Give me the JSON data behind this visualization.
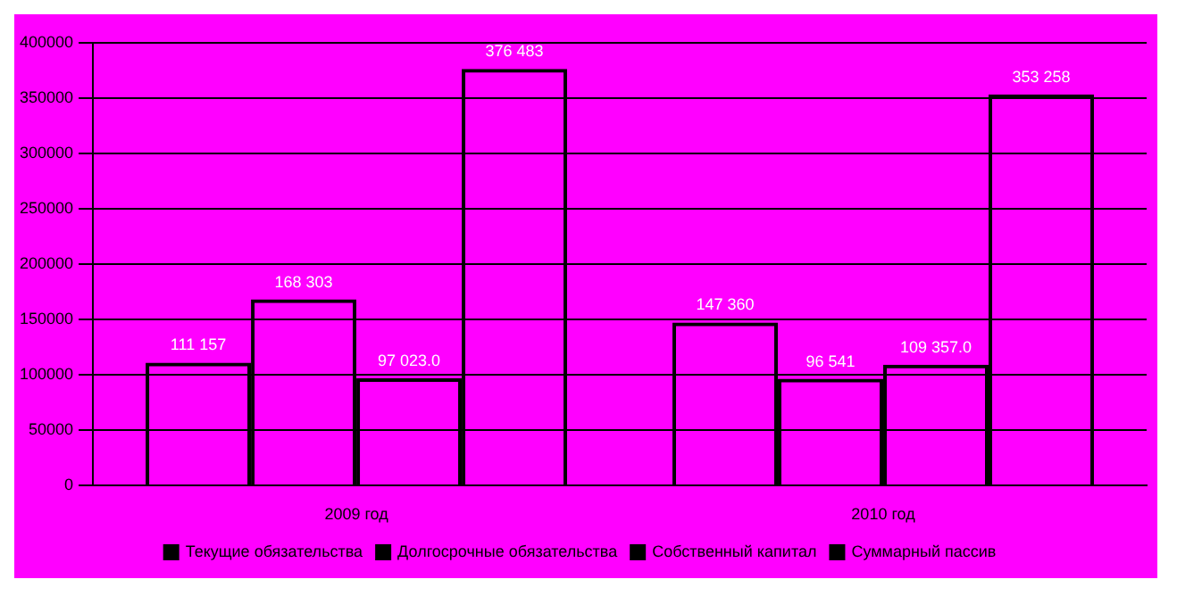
{
  "chart_data": {
    "type": "bar",
    "categories": [
      "2009 год",
      "2010 год"
    ],
    "series": [
      {
        "name": "Текущие обязательства",
        "color": "#000000",
        "values": [
          111157,
          147360
        ],
        "value_labels": [
          "111 157",
          "147 360"
        ]
      },
      {
        "name": "Долгосрочные обязательства",
        "color": "#000000",
        "values": [
          168303,
          96541
        ],
        "value_labels": [
          "168 303",
          "96 541"
        ]
      },
      {
        "name": "Собственный капитал",
        "color": "#000000",
        "values": [
          97023.0,
          109357.0
        ],
        "value_labels": [
          "97 023.0",
          "109 357.0"
        ]
      },
      {
        "name": "Суммарный пассив",
        "color": "#000000",
        "values": [
          376483,
          353258
        ],
        "value_labels": [
          "376 483",
          "353 258"
        ]
      }
    ],
    "ylim": [
      0,
      400000
    ],
    "yticks": [
      0,
      50000,
      100000,
      150000,
      200000,
      250000,
      300000,
      350000,
      400000
    ],
    "grid": "y",
    "legend": "bottom"
  }
}
